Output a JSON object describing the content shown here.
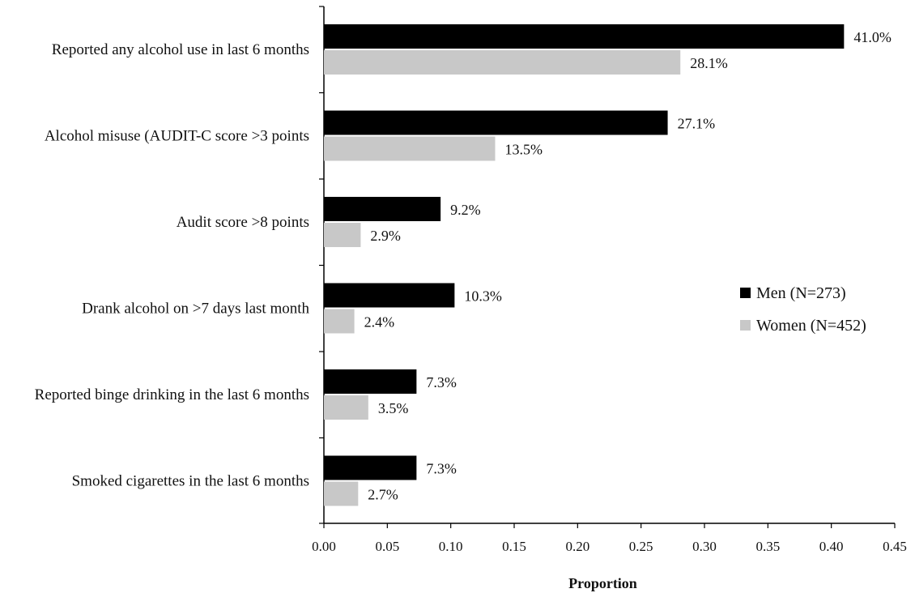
{
  "chart_data": {
    "type": "bar",
    "orientation": "horizontal",
    "categories": [
      "Reported any alcohol use in last 6 months",
      "Alcohol misuse (AUDIT-C score >3 points",
      "Audit score >8 points",
      "Drank alcohol on >7 days last month",
      "Reported binge drinking in the last 6 months",
      "Smoked cigarettes in the last 6 months"
    ],
    "series": [
      {
        "name": "Men (N=273)",
        "color": "#000000",
        "values": [
          0.41,
          0.271,
          0.092,
          0.103,
          0.073,
          0.073
        ],
        "labels": [
          "41.0%",
          "27.1%",
          "9.2%",
          "10.3%",
          "7.3%",
          "7.3%"
        ]
      },
      {
        "name": "Women (N=452)",
        "color": "#c8c8c8",
        "values": [
          0.281,
          0.135,
          0.029,
          0.024,
          0.035,
          0.027
        ],
        "labels": [
          "28.1%",
          "13.5%",
          "2.9%",
          "2.4%",
          "3.5%",
          "2.7%"
        ]
      }
    ],
    "xlim": [
      0,
      0.45
    ],
    "xticks": [
      "0.00",
      "0.05",
      "0.10",
      "0.15",
      "0.20",
      "0.25",
      "0.30",
      "0.35",
      "0.40",
      "0.45"
    ],
    "xlabel": "Proportion",
    "legend_position": "right",
    "grid": false
  }
}
